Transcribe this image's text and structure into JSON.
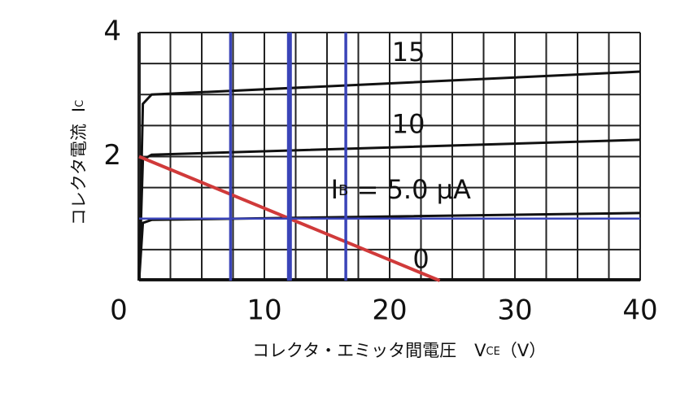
{
  "chart_data": {
    "type": "line",
    "xlim": [
      0,
      40
    ],
    "ylim": [
      0,
      4
    ],
    "xticks": [
      0,
      10,
      20,
      30,
      40
    ],
    "yticks": [
      2,
      4
    ],
    "x_gridlines": [
      0,
      2.5,
      5,
      7.5,
      10,
      12.5,
      15,
      17.5,
      20,
      22.5,
      25,
      27.5,
      30,
      32.5,
      35,
      37.5,
      40
    ],
    "y_gridlines": [
      0,
      0.5,
      1,
      1.5,
      2,
      2.5,
      3,
      3.5,
      4
    ],
    "grid": true,
    "y_label": {
      "text": "コレクタ電流",
      "symbol": "I",
      "subscript": "C"
    },
    "x_label": {
      "text": "コレクタ・エミッタ間電圧",
      "symbol": "V",
      "subscript": "CE",
      "unit": "（V）"
    },
    "series": [
      {
        "name": "15",
        "color": "#111111",
        "x": [
          0,
          0.3,
          1,
          40
        ],
        "values": [
          0,
          2.85,
          3.0,
          3.37
        ]
      },
      {
        "name": "10",
        "color": "#111111",
        "x": [
          0,
          0.3,
          1,
          40
        ],
        "values": [
          0,
          1.95,
          2.03,
          2.27
        ]
      },
      {
        "label": {
          "symbol": "I",
          "subscript": "B",
          "text": " = 5.0 μA"
        },
        "color": "#111111",
        "x": [
          0,
          0.3,
          1,
          40
        ],
        "values": [
          0,
          0.93,
          0.98,
          1.09
        ]
      },
      {
        "name": "0",
        "color": "#111111",
        "x": [
          0,
          40
        ],
        "values": [
          0.02,
          0.02
        ]
      },
      {
        "color": "#d03a3a",
        "x": [
          0,
          24
        ],
        "values": [
          2,
          0
        ]
      }
    ],
    "reference_lines": {
      "color": "#3a44b8",
      "y": [
        1
      ],
      "x": [
        7.3,
        12,
        16.5
      ]
    }
  }
}
